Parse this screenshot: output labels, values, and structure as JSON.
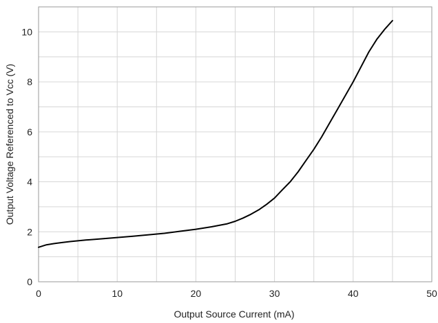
{
  "chart_data": {
    "type": "line",
    "title": "",
    "xlabel": "Output Source Current (mA)",
    "ylabel": "Output Voltage Referenced to Vcc (V)",
    "xlim": [
      0,
      50
    ],
    "ylim": [
      0,
      11
    ],
    "x_ticks": [
      0,
      10,
      20,
      30,
      40,
      50
    ],
    "y_ticks": [
      0,
      2,
      4,
      6,
      8,
      10
    ],
    "x_minor_step": 5,
    "y_minor_step": 1,
    "grid": true,
    "legend": "none",
    "line_color": "#000000",
    "series": [
      {
        "x": [
          0,
          1,
          2,
          3,
          4,
          5,
          6,
          8,
          10,
          12,
          14,
          16,
          18,
          20,
          22,
          24,
          25,
          26,
          27,
          28,
          29,
          30,
          31,
          32,
          33,
          34,
          35,
          36,
          37,
          38,
          39,
          40,
          41,
          42,
          43,
          44,
          45
        ],
        "y": [
          1.38,
          1.48,
          1.53,
          1.57,
          1.61,
          1.64,
          1.67,
          1.72,
          1.77,
          1.82,
          1.88,
          1.94,
          2.02,
          2.1,
          2.2,
          2.32,
          2.42,
          2.55,
          2.7,
          2.88,
          3.1,
          3.35,
          3.68,
          4.0,
          4.4,
          4.85,
          5.3,
          5.8,
          6.35,
          6.9,
          7.45,
          8.0,
          8.6,
          9.2,
          9.7,
          10.1,
          10.45
        ]
      }
    ]
  }
}
